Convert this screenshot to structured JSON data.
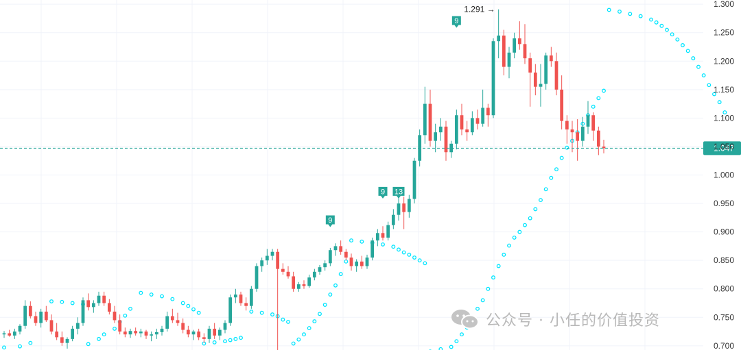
{
  "chart_data": {
    "type": "candlestick",
    "y_axis": {
      "ticks": [
        "1.300",
        "1.250",
        "1.200",
        "1.150",
        "1.100",
        "1.050",
        "1.000",
        "0.950",
        "0.900",
        "0.850",
        "0.800",
        "0.750",
        "0.700"
      ],
      "range": [
        0.695,
        1.305
      ],
      "position": "right"
    },
    "grid": true,
    "last_price": {
      "label": "1.047",
      "value": 1.047,
      "color": "#26a69a"
    },
    "high_marker": {
      "label": "1.291 →",
      "value": 1.291
    },
    "markers": [
      {
        "label": "9",
        "index": 62,
        "value": 0.905
      },
      {
        "label": "9",
        "index": 72,
        "value": 0.955
      },
      {
        "label": "13",
        "index": 75,
        "value": 0.955
      },
      {
        "label": "9",
        "index": 86,
        "value": 1.255
      }
    ],
    "colors": {
      "up": "#26a69a",
      "down": "#ef5350",
      "sar": "#00e5ff",
      "grid": "#f0f3fa"
    },
    "candles": [
      [
        0.72,
        0.726,
        0.714,
        0.722
      ],
      [
        0.722,
        0.728,
        0.716,
        0.718
      ],
      [
        0.718,
        0.73,
        0.712,
        0.725
      ],
      [
        0.725,
        0.738,
        0.72,
        0.735
      ],
      [
        0.735,
        0.78,
        0.73,
        0.77
      ],
      [
        0.77,
        0.778,
        0.748,
        0.752
      ],
      [
        0.752,
        0.76,
        0.735,
        0.74
      ],
      [
        0.74,
        0.765,
        0.732,
        0.76
      ],
      [
        0.76,
        0.77,
        0.742,
        0.745
      ],
      [
        0.745,
        0.755,
        0.72,
        0.725
      ],
      [
        0.725,
        0.74,
        0.71,
        0.715
      ],
      [
        0.715,
        0.725,
        0.7,
        0.705
      ],
      [
        0.705,
        0.715,
        0.695,
        0.712
      ],
      [
        0.712,
        0.735,
        0.708,
        0.73
      ],
      [
        0.73,
        0.75,
        0.72,
        0.74
      ],
      [
        0.74,
        0.785,
        0.735,
        0.78
      ],
      [
        0.78,
        0.792,
        0.762,
        0.768
      ],
      [
        0.768,
        0.78,
        0.758,
        0.775
      ],
      [
        0.775,
        0.795,
        0.77,
        0.788
      ],
      [
        0.788,
        0.795,
        0.77,
        0.775
      ],
      [
        0.775,
        0.782,
        0.755,
        0.76
      ],
      [
        0.76,
        0.77,
        0.74,
        0.745
      ],
      [
        0.745,
        0.755,
        0.72,
        0.725
      ],
      [
        0.725,
        0.732,
        0.715,
        0.72
      ],
      [
        0.72,
        0.73,
        0.714,
        0.726
      ],
      [
        0.726,
        0.732,
        0.718,
        0.722
      ],
      [
        0.722,
        0.73,
        0.715,
        0.725
      ],
      [
        0.725,
        0.728,
        0.712,
        0.718
      ],
      [
        0.718,
        0.725,
        0.708,
        0.72
      ],
      [
        0.72,
        0.73,
        0.712,
        0.724
      ],
      [
        0.724,
        0.735,
        0.718,
        0.73
      ],
      [
        0.73,
        0.76,
        0.725,
        0.752
      ],
      [
        0.752,
        0.765,
        0.74,
        0.745
      ],
      [
        0.745,
        0.758,
        0.735,
        0.74
      ],
      [
        0.74,
        0.748,
        0.722,
        0.728
      ],
      [
        0.728,
        0.735,
        0.715,
        0.72
      ],
      [
        0.72,
        0.728,
        0.71,
        0.725
      ],
      [
        0.725,
        0.73,
        0.71,
        0.715
      ],
      [
        0.715,
        0.722,
        0.705,
        0.712
      ],
      [
        0.712,
        0.735,
        0.705,
        0.73
      ],
      [
        0.73,
        0.74,
        0.712,
        0.718
      ],
      [
        0.718,
        0.732,
        0.71,
        0.728
      ],
      [
        0.728,
        0.745,
        0.722,
        0.74
      ],
      [
        0.74,
        0.79,
        0.735,
        0.785
      ],
      [
        0.785,
        0.8,
        0.775,
        0.79
      ],
      [
        0.79,
        0.795,
        0.77,
        0.775
      ],
      [
        0.775,
        0.785,
        0.762,
        0.77
      ],
      [
        0.77,
        0.805,
        0.765,
        0.8
      ],
      [
        0.8,
        0.845,
        0.795,
        0.84
      ],
      [
        0.84,
        0.855,
        0.83,
        0.85
      ],
      [
        0.85,
        0.87,
        0.842,
        0.858
      ],
      [
        0.858,
        0.87,
        0.85,
        0.865
      ],
      [
        0.865,
        0.87,
        0.692,
        0.835
      ],
      [
        0.835,
        0.845,
        0.825,
        0.83
      ],
      [
        0.83,
        0.84,
        0.818,
        0.822
      ],
      [
        0.822,
        0.83,
        0.795,
        0.8
      ],
      [
        0.8,
        0.812,
        0.795,
        0.808
      ],
      [
        0.808,
        0.815,
        0.8,
        0.805
      ],
      [
        0.805,
        0.825,
        0.802,
        0.82
      ],
      [
        0.82,
        0.835,
        0.815,
        0.83
      ],
      [
        0.83,
        0.842,
        0.825,
        0.838
      ],
      [
        0.838,
        0.85,
        0.832,
        0.845
      ],
      [
        0.845,
        0.872,
        0.84,
        0.868
      ],
      [
        0.868,
        0.88,
        0.858,
        0.875
      ],
      [
        0.875,
        0.885,
        0.86,
        0.865
      ],
      [
        0.865,
        0.87,
        0.85,
        0.855
      ],
      [
        0.855,
        0.862,
        0.832,
        0.84
      ],
      [
        0.84,
        0.852,
        0.83,
        0.848
      ],
      [
        0.848,
        0.858,
        0.835,
        0.84
      ],
      [
        0.84,
        0.86,
        0.835,
        0.855
      ],
      [
        0.855,
        0.89,
        0.85,
        0.885
      ],
      [
        0.885,
        0.905,
        0.875,
        0.898
      ],
      [
        0.898,
        0.91,
        0.885,
        0.89
      ],
      [
        0.89,
        0.918,
        0.885,
        0.912
      ],
      [
        0.912,
        0.94,
        0.905,
        0.93
      ],
      [
        0.93,
        0.96,
        0.92,
        0.95
      ],
      [
        0.95,
        0.962,
        0.905,
        0.935
      ],
      [
        0.935,
        0.965,
        0.925,
        0.958
      ],
      [
        0.958,
        1.03,
        0.95,
        1.025
      ],
      [
        1.025,
        1.08,
        1.015,
        1.07
      ],
      [
        1.07,
        1.155,
        1.055,
        1.125
      ],
      [
        1.125,
        1.15,
        1.05,
        1.06
      ],
      [
        1.06,
        1.09,
        1.04,
        1.075
      ],
      [
        1.075,
        1.1,
        1.06,
        1.085
      ],
      [
        1.085,
        1.095,
        1.025,
        1.04
      ],
      [
        1.04,
        1.06,
        1.03,
        1.055
      ],
      [
        1.055,
        1.115,
        1.045,
        1.105
      ],
      [
        1.105,
        1.125,
        1.07,
        1.08
      ],
      [
        1.08,
        1.095,
        1.06,
        1.075
      ],
      [
        1.075,
        1.112,
        1.07,
        1.1
      ],
      [
        1.1,
        1.115,
        1.08,
        1.09
      ],
      [
        1.09,
        1.15,
        1.085,
        1.118
      ],
      [
        1.118,
        1.125,
        1.085,
        1.105
      ],
      [
        1.105,
        1.24,
        1.1,
        1.235
      ],
      [
        1.235,
        1.291,
        1.205,
        1.245
      ],
      [
        1.245,
        1.255,
        1.175,
        1.19
      ],
      [
        1.19,
        1.225,
        1.17,
        1.215
      ],
      [
        1.215,
        1.25,
        1.205,
        1.24
      ],
      [
        1.24,
        1.27,
        1.22,
        1.23
      ],
      [
        1.23,
        1.265,
        1.195,
        1.205
      ],
      [
        1.205,
        1.215,
        1.12,
        1.18
      ],
      [
        1.18,
        1.195,
        1.14,
        1.155
      ],
      [
        1.155,
        1.195,
        1.12,
        1.16
      ],
      [
        1.16,
        1.215,
        1.15,
        1.21
      ],
      [
        1.21,
        1.225,
        1.19,
        1.2
      ],
      [
        1.2,
        1.215,
        1.14,
        1.15
      ],
      [
        1.15,
        1.175,
        1.08,
        1.095
      ],
      [
        1.095,
        1.105,
        1.055,
        1.08
      ],
      [
        1.08,
        1.095,
        1.04,
        1.075
      ],
      [
        1.075,
        1.098,
        1.025,
        1.06
      ],
      [
        1.06,
        1.102,
        1.05,
        1.085
      ],
      [
        1.085,
        1.13,
        1.072,
        1.105
      ],
      [
        1.105,
        1.11,
        1.06,
        1.078
      ],
      [
        1.078,
        1.085,
        1.035,
        1.05
      ],
      [
        1.05,
        1.062,
        1.038,
        1.047
      ]
    ],
    "sar": [
      [
        0,
        0.697
      ],
      [
        3,
        0.699
      ],
      [
        5,
        0.705
      ],
      [
        9,
        0.778
      ],
      [
        11,
        0.777
      ],
      [
        13,
        0.775
      ],
      [
        15,
        0.773
      ],
      [
        16,
        0.703
      ],
      [
        18,
        0.712
      ],
      [
        19,
        0.72
      ],
      [
        21,
        0.73
      ],
      [
        22,
        0.742
      ],
      [
        23,
        0.753
      ],
      [
        24,
        0.765
      ],
      [
        26,
        0.793
      ],
      [
        28,
        0.79
      ],
      [
        30,
        0.787
      ],
      [
        32,
        0.782
      ],
      [
        34,
        0.775
      ],
      [
        35,
        0.77
      ],
      [
        36,
        0.764
      ],
      [
        37,
        0.758
      ],
      [
        38,
        0.704
      ],
      [
        40,
        0.706
      ],
      [
        42,
        0.708
      ],
      [
        43,
        0.71
      ],
      [
        44,
        0.712
      ],
      [
        45,
        0.714
      ],
      [
        47,
        0.76
      ],
      [
        49,
        0.758
      ],
      [
        51,
        0.755
      ],
      [
        52,
        0.752
      ],
      [
        53,
        0.746
      ],
      [
        54,
        0.742
      ],
      [
        55,
        0.704
      ],
      [
        56,
        0.711
      ],
      [
        57,
        0.72
      ],
      [
        58,
        0.731
      ],
      [
        59,
        0.743
      ],
      [
        60,
        0.756
      ],
      [
        61,
        0.772
      ],
      [
        62,
        0.79
      ],
      [
        63,
        0.806
      ],
      [
        64,
        0.826
      ],
      [
        65,
        0.848
      ],
      [
        66,
        0.885
      ],
      [
        68,
        0.883
      ],
      [
        70,
        0.881
      ],
      [
        72,
        0.878
      ],
      [
        74,
        0.874
      ],
      [
        75,
        0.869
      ],
      [
        76,
        0.864
      ],
      [
        77,
        0.86
      ],
      [
        78,
        0.855
      ],
      [
        79,
        0.85
      ],
      [
        80,
        0.845
      ],
      [
        81,
        0.69
      ],
      [
        83,
        0.694
      ],
      [
        85,
        0.698
      ],
      [
        86,
        0.708
      ],
      [
        87,
        0.72
      ],
      [
        88,
        0.732
      ],
      [
        89,
        0.75
      ],
      [
        90,
        0.765
      ],
      [
        91,
        0.78
      ],
      [
        92,
        0.8
      ],
      [
        93,
        0.82
      ],
      [
        94,
        0.84
      ],
      [
        95,
        0.86
      ],
      [
        96,
        0.876
      ],
      [
        97,
        0.89
      ],
      [
        98,
        0.9
      ],
      [
        99,
        0.912
      ],
      [
        100,
        0.924
      ],
      [
        101,
        0.94
      ],
      [
        102,
        0.956
      ],
      [
        103,
        0.975
      ],
      [
        104,
        0.995
      ],
      [
        105,
        1.01
      ],
      [
        106,
        1.03
      ],
      [
        107,
        1.048
      ],
      [
        108,
        1.06
      ],
      [
        109,
        1.075
      ],
      [
        110,
        1.09
      ],
      [
        111,
        1.105
      ],
      [
        112,
        1.12
      ],
      [
        113,
        1.135
      ],
      [
        114,
        1.148
      ],
      [
        115,
        1.29
      ],
      [
        117,
        1.287
      ],
      [
        119,
        1.283
      ],
      [
        121,
        1.279
      ],
      [
        123,
        1.273
      ],
      [
        124,
        1.268
      ],
      [
        125,
        1.262
      ],
      [
        126,
        1.255
      ],
      [
        127,
        1.247
      ],
      [
        128,
        1.238
      ],
      [
        129,
        1.228
      ],
      [
        130,
        1.218
      ],
      [
        131,
        1.205
      ],
      [
        132,
        1.19
      ],
      [
        133,
        1.175
      ],
      [
        134,
        1.158
      ],
      [
        135,
        1.142
      ],
      [
        136,
        1.128
      ],
      [
        137,
        1.11
      ]
    ]
  },
  "watermark": {
    "text": "公众号 · 小任的价值投资",
    "icon": "wechat-icon"
  }
}
